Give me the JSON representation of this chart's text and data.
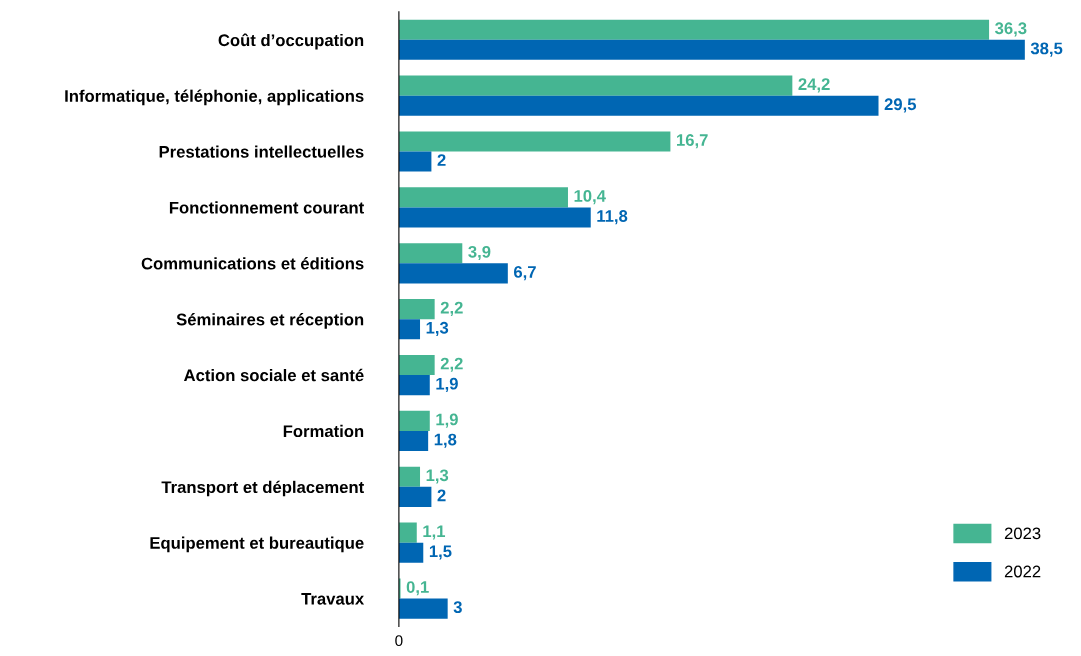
{
  "chart_data": {
    "type": "bar",
    "orientation": "horizontal",
    "categories": [
      "Coût d’occupation",
      "Informatique, téléphonie, applications",
      "Prestations intellectuelles",
      "Fonctionnement courant",
      "Communications et éditions",
      "Séminaires et réception",
      "Action sociale et santé",
      "Formation",
      "Transport et déplacement",
      "Equipement et bureautique",
      "Travaux"
    ],
    "series": [
      {
        "name": "2023",
        "color": "#45b592",
        "values": [
          36.3,
          24.2,
          16.7,
          10.4,
          3.9,
          2.2,
          2.2,
          1.9,
          1.3,
          1.1,
          0.1
        ],
        "value_labels": [
          "36,3",
          "24,2",
          "16,7",
          "10,4",
          "3,9",
          "2,2",
          "2,2",
          "1,9",
          "1,3",
          "1,1",
          "0,1"
        ]
      },
      {
        "name": "2022",
        "color": "#0066b3",
        "values": [
          38.5,
          29.5,
          2,
          11.8,
          6.7,
          1.3,
          1.9,
          1.8,
          2,
          1.5,
          3
        ],
        "value_labels": [
          "38,5",
          "29,5",
          "2",
          "11,8",
          "6,7",
          "1,3",
          "1,9",
          "1,8",
          "2",
          "1,5",
          "3"
        ]
      }
    ],
    "annotations": [
      "0"
    ],
    "grid": false,
    "legend": "bottom right"
  }
}
